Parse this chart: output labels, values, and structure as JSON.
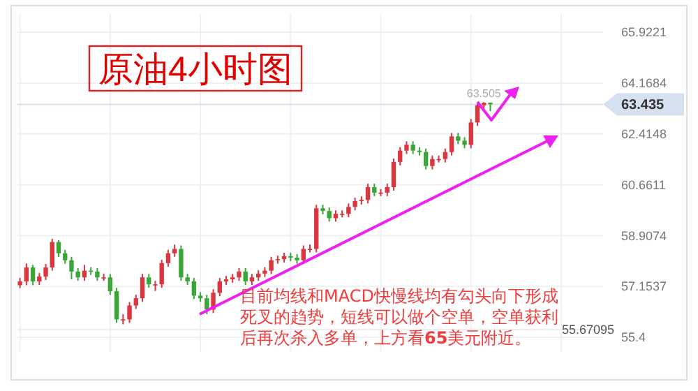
{
  "chart_data": {
    "type": "candlestick",
    "title": "原油4小时图",
    "categories": [
      null,
      null,
      null,
      null,
      null,
      null,
      null,
      null,
      null,
      null,
      null,
      null,
      null,
      null,
      null,
      null,
      null,
      null,
      null,
      null,
      null,
      null,
      null,
      null,
      null,
      null,
      null,
      null,
      null,
      null,
      null,
      null,
      null,
      null,
      null,
      null,
      null,
      null,
      null,
      null,
      null,
      null,
      null,
      null,
      null,
      null,
      null,
      null,
      null,
      null,
      null,
      null,
      null,
      null,
      null,
      null,
      null,
      null,
      null,
      null,
      null,
      null,
      null,
      null,
      null,
      null,
      null,
      null,
      null,
      null,
      null,
      null,
      null,
      null,
      null,
      null,
      null,
      null,
      null,
      null,
      null,
      null,
      null,
      null,
      null,
      null,
      null,
      null,
      null,
      null,
      null
    ],
    "ohlc": [
      [
        57.2,
        57.45,
        57.1,
        57.33
      ],
      [
        57.33,
        57.95,
        57.2,
        57.81
      ],
      [
        57.81,
        57.9,
        57.2,
        57.33
      ],
      [
        57.33,
        57.62,
        57.21,
        57.5
      ],
      [
        57.5,
        57.93,
        57.38,
        57.81
      ],
      [
        57.81,
        58.8,
        57.7,
        58.69
      ],
      [
        58.69,
        58.75,
        58.18,
        58.3
      ],
      [
        58.3,
        58.42,
        57.94,
        58.06
      ],
      [
        58.06,
        58.18,
        57.4,
        57.67
      ],
      [
        57.67,
        57.79,
        57.35,
        57.47
      ],
      [
        57.47,
        57.9,
        57.35,
        57.7
      ],
      [
        57.7,
        57.82,
        57.55,
        57.67
      ],
      [
        57.67,
        57.79,
        57.35,
        57.47
      ],
      [
        57.47,
        57.6,
        57.35,
        57.47
      ],
      [
        57.47,
        57.59,
        56.87,
        56.99
      ],
      [
        56.99,
        57.11,
        55.9,
        56.02
      ],
      [
        56.02,
        56.2,
        55.85,
        56.02
      ],
      [
        56.02,
        56.62,
        55.9,
        56.5
      ],
      [
        56.5,
        56.87,
        56.38,
        56.75
      ],
      [
        56.75,
        57.59,
        56.63,
        57.47
      ],
      [
        57.47,
        57.59,
        57.11,
        57.23
      ],
      [
        57.23,
        57.35,
        57.0,
        57.23
      ],
      [
        57.23,
        58.08,
        57.11,
        57.96
      ],
      [
        57.96,
        58.42,
        57.84,
        58.3
      ],
      [
        58.3,
        58.6,
        58.18,
        58.45
      ],
      [
        58.45,
        58.57,
        57.35,
        57.47
      ],
      [
        57.47,
        57.59,
        57.21,
        57.33
      ],
      [
        57.33,
        57.45,
        56.72,
        56.84
      ],
      [
        56.84,
        56.96,
        56.63,
        56.75
      ],
      [
        56.75,
        56.87,
        56.2,
        56.36
      ],
      [
        56.36,
        57.06,
        56.24,
        56.94
      ],
      [
        56.94,
        57.45,
        56.82,
        57.33
      ],
      [
        57.33,
        57.52,
        57.21,
        57.4
      ],
      [
        57.4,
        57.59,
        57.28,
        57.47
      ],
      [
        57.47,
        57.79,
        57.35,
        57.67
      ],
      [
        57.67,
        57.79,
        57.21,
        57.33
      ],
      [
        57.33,
        57.59,
        57.21,
        57.47
      ],
      [
        57.47,
        57.72,
        57.35,
        57.6
      ],
      [
        57.6,
        57.82,
        57.48,
        57.7
      ],
      [
        57.7,
        58.18,
        57.58,
        58.06
      ],
      [
        58.06,
        58.22,
        57.94,
        58.1
      ],
      [
        58.1,
        58.32,
        57.98,
        58.2
      ],
      [
        58.2,
        58.32,
        58.03,
        58.15
      ],
      [
        58.15,
        58.27,
        57.94,
        58.06
      ],
      [
        58.06,
        58.57,
        57.94,
        58.45
      ],
      [
        58.45,
        58.6,
        58.33,
        58.45
      ],
      [
        58.45,
        59.97,
        58.33,
        59.85
      ],
      [
        59.85,
        59.97,
        59.64,
        59.76
      ],
      [
        59.76,
        59.88,
        59.39,
        59.51
      ],
      [
        59.51,
        59.78,
        59.39,
        59.66
      ],
      [
        59.66,
        59.78,
        59.54,
        59.66
      ],
      [
        59.66,
        60.02,
        59.54,
        59.9
      ],
      [
        59.9,
        60.22,
        59.78,
        60.1
      ],
      [
        60.1,
        60.26,
        59.98,
        60.14
      ],
      [
        60.14,
        60.7,
        60.02,
        60.58
      ],
      [
        60.58,
        60.7,
        60.27,
        60.39
      ],
      [
        60.39,
        60.51,
        60.27,
        60.39
      ],
      [
        60.39,
        60.7,
        60.27,
        60.58
      ],
      [
        60.58,
        61.57,
        60.46,
        61.45
      ],
      [
        61.45,
        61.96,
        61.33,
        61.84
      ],
      [
        61.84,
        62.16,
        61.72,
        62.04
      ],
      [
        62.04,
        62.16,
        61.72,
        61.84
      ],
      [
        61.84,
        61.96,
        61.67,
        61.79
      ],
      [
        61.79,
        61.91,
        61.19,
        61.31
      ],
      [
        61.31,
        61.67,
        61.19,
        61.55
      ],
      [
        61.55,
        61.67,
        61.43,
        61.55
      ],
      [
        61.55,
        61.91,
        61.43,
        61.79
      ],
      [
        61.79,
        62.45,
        61.67,
        62.33
      ],
      [
        62.33,
        62.45,
        62.06,
        62.18
      ],
      [
        62.18,
        62.3,
        61.92,
        62.04
      ],
      [
        62.04,
        62.93,
        61.92,
        62.81
      ],
      [
        62.81,
        63.45,
        62.69,
        63.4
      ],
      [
        63.4,
        63.505,
        63.28,
        63.49
      ],
      [
        63.49,
        63.5,
        63.2,
        63.435
      ],
      null,
      null,
      null,
      null,
      null,
      null,
      null,
      null,
      null,
      null,
      null,
      null,
      null,
      null,
      null,
      null,
      null
    ],
    "ylim": [
      54.9,
      66.55
    ],
    "yticks": [
      55.4,
      57.1537,
      58.9074,
      60.6611,
      62.4148,
      64.1684,
      65.9221
    ],
    "grid": true,
    "ref_lines": [
      {
        "axis": "y",
        "value": 63.435,
        "label": "63.435",
        "color": "#d5e1ef"
      },
      {
        "axis": "y",
        "value": 55.67095,
        "label": "55.67095",
        "color": "#eeeeee"
      }
    ],
    "annotations": [
      {
        "text": "63.505",
        "y": 63.505
      },
      "目前均线和MACD快慢线均有勾头向下形成死叉的趋势，短线可以做个空单，空单获利后再次杀入多单，上方看**65**美元附近。"
    ]
  }
}
